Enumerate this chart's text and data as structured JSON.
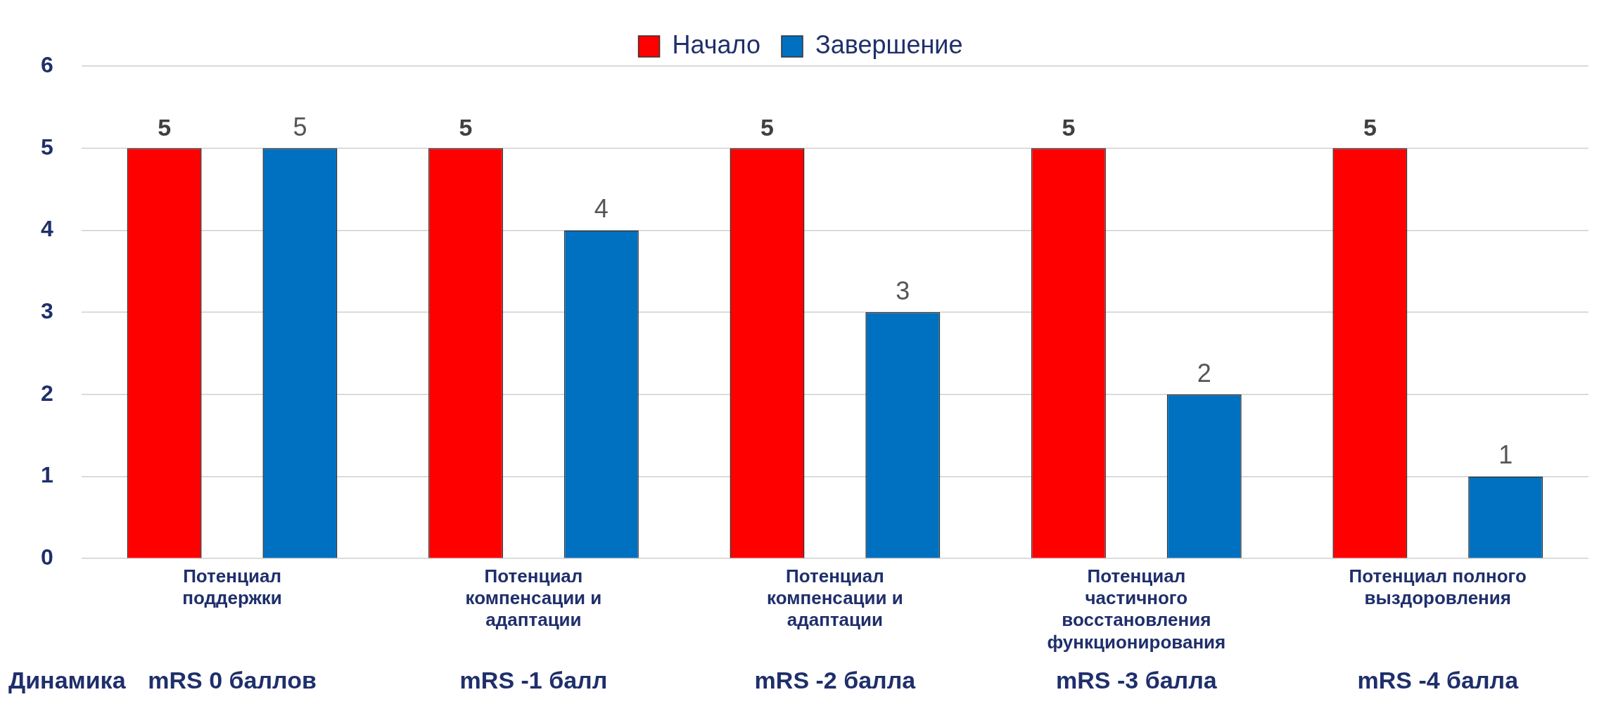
{
  "chart_data": {
    "type": "bar",
    "categories": [
      "Потенциал поддержки",
      "Потенциал компенсации и адаптации",
      "Потенциал компенсации и адаптации",
      "Потенциал частичного восстановления функционирования",
      "Потенциал полного выздоровления"
    ],
    "series": [
      {
        "name": "Начало",
        "color": "#ff0000",
        "values": [
          5,
          5,
          5,
          5,
          5
        ]
      },
      {
        "name": "Завершение",
        "color": "#0070c0",
        "values": [
          5,
          4,
          3,
          2,
          1
        ]
      }
    ],
    "ylim": [
      0,
      6
    ],
    "yticks": [
      0,
      1,
      2,
      3,
      4,
      5,
      6
    ],
    "grid": "y",
    "legend": "top",
    "data_labels": true,
    "annotations": [
      "Динамика",
      "mRS 0 баллов",
      "mRS -1 балл",
      "mRS -2 балла",
      "mRS -3 балла",
      "mRS -4 балла"
    ]
  }
}
